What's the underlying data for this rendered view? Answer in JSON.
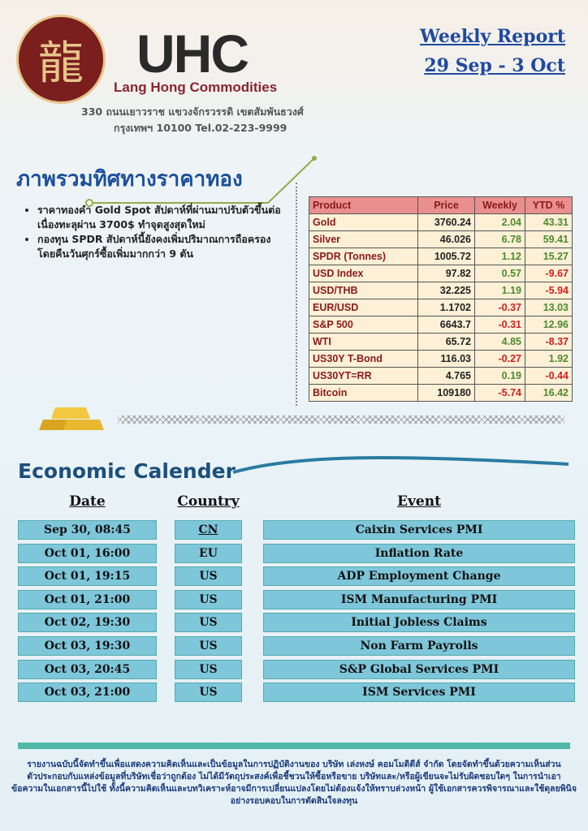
{
  "header": {
    "company": "Lang Hong Commodities",
    "logo_text": "UHC",
    "address_line1": "330 ถนนเยาวราช แขวงจักรวรรดิ เขตสัมพันธวงศ์",
    "address_line2": "กรุงเทพฯ 10100 Tel.02-223-9999",
    "report_title": "Weekly Report",
    "report_dates": "29 Sep - 3 Oct"
  },
  "gold": {
    "title": "ภาพรวมทิศทางราคาทอง",
    "bullets": [
      "ราคาทองคำ Gold Spot สัปดาห์ที่ผ่านมาปรับตัวขึ้นต่อเนื่องทะลุผ่าน 3700$ ทำจุดสูงสุดใหม่",
      "กองทุน SPDR สัปดาห์นี้ยังคงเพิ่มปริมาณการถือครอง โดยคืนวันศุกร์ซื้อเพิ่มมากกว่า 9 ตัน"
    ]
  },
  "prices": {
    "headers": [
      "Product",
      "Price",
      "Weekly",
      "YTD %"
    ],
    "rows": [
      [
        "Gold",
        "3760.24",
        "2.04",
        "43.31"
      ],
      [
        "Silver",
        "46.026",
        "6.78",
        "59.41"
      ],
      [
        "SPDR (Tonnes)",
        "1005.72",
        "1.12",
        "15.27"
      ],
      [
        "USD Index",
        "97.82",
        "0.57",
        "-9.67"
      ],
      [
        "USD/THB",
        "32.225",
        "1.19",
        "-5.94"
      ],
      [
        "EUR/USD",
        "1.1702",
        "-0.37",
        "13.03"
      ],
      [
        "S&P 500",
        "6643.7",
        "-0.31",
        "12.96"
      ],
      [
        "WTI",
        "65.72",
        "4.85",
        "-8.37"
      ],
      [
        "US30Y T-Bond",
        "116.03",
        "-0.27",
        "1.92"
      ],
      [
        "US30YT=RR",
        "4.765",
        "0.19",
        "-0.44"
      ],
      [
        "Bitcoin",
        "109180",
        "-5.74",
        "16.42"
      ]
    ]
  },
  "calendar": {
    "title": "Economic Calender",
    "headers": {
      "date": "Date",
      "country": "Country",
      "event": "Event"
    },
    "rows": [
      {
        "date": "Sep 30, 08:45",
        "country": "CN",
        "event": "Caixin Services PMI"
      },
      {
        "date": "Oct 01, 16:00",
        "country": "EU",
        "event": "Inflation Rate"
      },
      {
        "date": "Oct 01, 19:15",
        "country": "US",
        "event": "ADP Employment Change"
      },
      {
        "date": "Oct 01, 21:00",
        "country": "US",
        "event": "ISM Manufacturing PMI"
      },
      {
        "date": "Oct 02, 19:30",
        "country": "US",
        "event": "Initial Jobless Claims"
      },
      {
        "date": "Oct 03, 19:30",
        "country": "US",
        "event": "Non Farm Payrolls"
      },
      {
        "date": "Oct 03, 20:45",
        "country": "US",
        "event": "S&P Global Services PMI"
      },
      {
        "date": "Oct 03, 21:00",
        "country": "US",
        "event": "ISM Services PMI"
      }
    ]
  },
  "disclaimer": "รายงานฉบับนี้จัดทำขึ้นเพื่อแสดงความคิดเห็นและเป็นข้อมูลในการปฏิบัติงานของ บริษัท เล่งหงษ์ คอมโมดิตีส์ จำกัด โดยจัดทำขึ้นด้วยความเห็นส่วนตัวประกอบกับแหล่งข้อมูลที่บริษัทเชื่อว่าถูกต้อง ไม่ได้มีวัตถุประสงค์เพื่อชี้ชวนให้ซื้อหรือขาย บริษัทและ/หรือผู้เขียนจะไม่รับผิดชอบใดๆ ในการนำเอาข้อความในเอกสารนี้ไปใช้ ทั้งนี้ความคิดเห็นและบทวิเคราะห์อาจมีการเปลี่ยนแปลงโดยไม่ต้องแจ้งให้ทราบล่วงหน้า ผู้ใช้เอกสารควรพิจารณาและใช้ดุลยพินิจอย่างรอบคอบในการตัดสินใจลงทุน",
  "colors": {
    "positive": "#4c8b2e",
    "negative": "#d02020",
    "calendar_cell": "#7ec6d9",
    "title_blue": "#1c4f9c"
  }
}
